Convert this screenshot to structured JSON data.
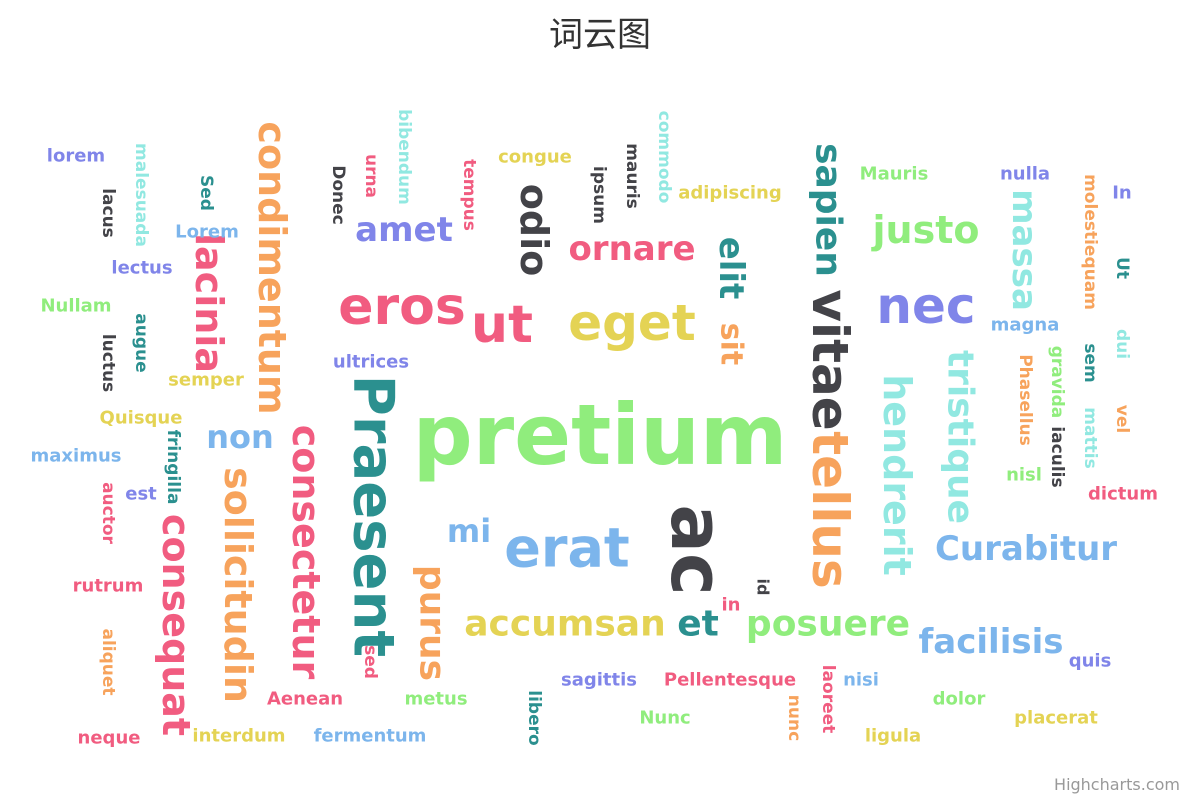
{
  "chart_data": {
    "type": "wordcloud",
    "title": "词云图",
    "credits": "Highcharts.com",
    "words": [
      {
        "text": "pretium",
        "weight": 10,
        "color": "#90ed7d",
        "rotate": 0
      },
      {
        "text": "ac",
        "weight": 7,
        "color": "#434348",
        "rotate": 90
      },
      {
        "text": "Praesent",
        "weight": 6,
        "color": "#2b908f",
        "rotate": 90
      },
      {
        "text": "vitae",
        "weight": 6,
        "color": "#434348",
        "rotate": 90
      },
      {
        "text": "tellus",
        "weight": 6,
        "color": "#f7a35c",
        "rotate": 90
      },
      {
        "text": "erat",
        "weight": 6,
        "color": "#7cb5ec",
        "rotate": 0
      },
      {
        "text": "eros",
        "weight": 6,
        "color": "#f15c80",
        "rotate": 0
      },
      {
        "text": "ut",
        "weight": 6,
        "color": "#f15c80",
        "rotate": 0
      },
      {
        "text": "eget",
        "weight": 6,
        "color": "#e4d354",
        "rotate": 0
      },
      {
        "text": "nec",
        "weight": 6,
        "color": "#8085e9",
        "rotate": 0
      },
      {
        "text": "consequat",
        "weight": 5,
        "color": "#f15c80",
        "rotate": 90
      },
      {
        "text": "condimentum",
        "weight": 5,
        "color": "#f7a35c",
        "rotate": 90
      },
      {
        "text": "consectetur",
        "weight": 5,
        "color": "#f15c80",
        "rotate": 90
      },
      {
        "text": "sollicitudin",
        "weight": 5,
        "color": "#f7a35c",
        "rotate": 90
      },
      {
        "text": "lacinia",
        "weight": 5,
        "color": "#f15c80",
        "rotate": 90
      },
      {
        "text": "hendrerit",
        "weight": 5,
        "color": "#91e8e1",
        "rotate": 90
      },
      {
        "text": "tristique",
        "weight": 5,
        "color": "#91e8e1",
        "rotate": 90
      },
      {
        "text": "massa",
        "weight": 5,
        "color": "#91e8e1",
        "rotate": 90
      },
      {
        "text": "sapien",
        "weight": 5,
        "color": "#2b908f",
        "rotate": 90
      },
      {
        "text": "odio",
        "weight": 5,
        "color": "#434348",
        "rotate": 90
      },
      {
        "text": "purus",
        "weight": 5,
        "color": "#f7a35c",
        "rotate": 90
      },
      {
        "text": "elit",
        "weight": 5,
        "color": "#2b908f",
        "rotate": 90
      },
      {
        "text": "sit",
        "weight": 5,
        "color": "#f7a35c",
        "rotate": 90
      },
      {
        "text": "accumsan",
        "weight": 5,
        "color": "#e4d354",
        "rotate": 0
      },
      {
        "text": "posuere",
        "weight": 5,
        "color": "#90ed7d",
        "rotate": 0
      },
      {
        "text": "et",
        "weight": 5,
        "color": "#2b908f",
        "rotate": 0
      },
      {
        "text": "facilisis",
        "weight": 5,
        "color": "#7cb5ec",
        "rotate": 0
      },
      {
        "text": "Curabitur",
        "weight": 4,
        "color": "#7cb5ec",
        "rotate": 0
      },
      {
        "text": "justo",
        "weight": 5,
        "color": "#90ed7d",
        "rotate": 0
      },
      {
        "text": "ornare",
        "weight": 4,
        "color": "#f15c80",
        "rotate": 0
      },
      {
        "text": "amet",
        "weight": 4,
        "color": "#8085e9",
        "rotate": 0
      },
      {
        "text": "non",
        "weight": 4,
        "color": "#7cb5ec",
        "rotate": 0
      },
      {
        "text": "mi",
        "weight": 4,
        "color": "#7cb5ec",
        "rotate": 0
      },
      {
        "text": "lorem",
        "weight": 2,
        "color": "#8085e9",
        "rotate": 0
      },
      {
        "text": "lacus",
        "weight": 2,
        "color": "#434348",
        "rotate": 90
      },
      {
        "text": "malesuada",
        "weight": 2,
        "color": "#91e8e1",
        "rotate": 90
      },
      {
        "text": "Sed",
        "weight": 2,
        "color": "#2b908f",
        "rotate": 90
      },
      {
        "text": "Lorem",
        "weight": 2,
        "color": "#7cb5ec",
        "rotate": 0
      },
      {
        "text": "lectus",
        "weight": 2,
        "color": "#8085e9",
        "rotate": 0
      },
      {
        "text": "Nullam",
        "weight": 2,
        "color": "#90ed7d",
        "rotate": 0
      },
      {
        "text": "luctus",
        "weight": 2,
        "color": "#434348",
        "rotate": 90
      },
      {
        "text": "augue",
        "weight": 2,
        "color": "#2b908f",
        "rotate": 90
      },
      {
        "text": "semper",
        "weight": 2,
        "color": "#e4d354",
        "rotate": 0
      },
      {
        "text": "Quisque",
        "weight": 2,
        "color": "#e4d354",
        "rotate": 0
      },
      {
        "text": "maximus",
        "weight": 2,
        "color": "#7cb5ec",
        "rotate": 0
      },
      {
        "text": "fringilla",
        "weight": 2,
        "color": "#2b908f",
        "rotate": 90
      },
      {
        "text": "est",
        "weight": 2,
        "color": "#8085e9",
        "rotate": 0
      },
      {
        "text": "auctor",
        "weight": 2,
        "color": "#f15c80",
        "rotate": 90
      },
      {
        "text": "rutrum",
        "weight": 2,
        "color": "#f15c80",
        "rotate": 0
      },
      {
        "text": "aliquet",
        "weight": 2,
        "color": "#f7a35c",
        "rotate": 90
      },
      {
        "text": "neque",
        "weight": 2,
        "color": "#f15c80",
        "rotate": 0
      },
      {
        "text": "interdum",
        "weight": 2,
        "color": "#e4d354",
        "rotate": 0
      },
      {
        "text": "fermentum",
        "weight": 2,
        "color": "#7cb5ec",
        "rotate": 0
      },
      {
        "text": "Aenean",
        "weight": 2,
        "color": "#f15c80",
        "rotate": 0
      },
      {
        "text": "metus",
        "weight": 2,
        "color": "#90ed7d",
        "rotate": 0
      },
      {
        "text": "sed",
        "weight": 2,
        "color": "#f15c80",
        "rotate": 90
      },
      {
        "text": "libero",
        "weight": 2,
        "color": "#2b908f",
        "rotate": 90
      },
      {
        "text": "sagittis",
        "weight": 2,
        "color": "#8085e9",
        "rotate": 0
      },
      {
        "text": "Nunc",
        "weight": 2,
        "color": "#90ed7d",
        "rotate": 0
      },
      {
        "text": "Pellentesque",
        "weight": 2,
        "color": "#f15c80",
        "rotate": 0
      },
      {
        "text": "nunc",
        "weight": 2,
        "color": "#f7a35c",
        "rotate": 90
      },
      {
        "text": "laoreet",
        "weight": 2,
        "color": "#f15c80",
        "rotate": 90
      },
      {
        "text": "nisi",
        "weight": 2,
        "color": "#7cb5ec",
        "rotate": 0
      },
      {
        "text": "ligula",
        "weight": 2,
        "color": "#e4d354",
        "rotate": 0
      },
      {
        "text": "dolor",
        "weight": 2,
        "color": "#90ed7d",
        "rotate": 0
      },
      {
        "text": "placerat",
        "weight": 2,
        "color": "#e4d354",
        "rotate": 0
      },
      {
        "text": "quis",
        "weight": 2,
        "color": "#8085e9",
        "rotate": 0
      },
      {
        "text": "in",
        "weight": 2,
        "color": "#f15c80",
        "rotate": 0
      },
      {
        "text": "id",
        "weight": 2,
        "color": "#434348",
        "rotate": 90
      },
      {
        "text": "ultrices",
        "weight": 2,
        "color": "#8085e9",
        "rotate": 0
      },
      {
        "text": "Donec",
        "weight": 2,
        "color": "#434348",
        "rotate": 90
      },
      {
        "text": "urna",
        "weight": 2,
        "color": "#f15c80",
        "rotate": 90
      },
      {
        "text": "bibendum",
        "weight": 2,
        "color": "#91e8e1",
        "rotate": 90
      },
      {
        "text": "tempus",
        "weight": 2,
        "color": "#f15c80",
        "rotate": 90
      },
      {
        "text": "congue",
        "weight": 2,
        "color": "#e4d354",
        "rotate": 0
      },
      {
        "text": "ipsum",
        "weight": 2,
        "color": "#434348",
        "rotate": 90
      },
      {
        "text": "mauris",
        "weight": 2,
        "color": "#434348",
        "rotate": 90
      },
      {
        "text": "commodo",
        "weight": 2,
        "color": "#91e8e1",
        "rotate": 90
      },
      {
        "text": "adipiscing",
        "weight": 2,
        "color": "#e4d354",
        "rotate": 0
      },
      {
        "text": "Mauris",
        "weight": 2,
        "color": "#90ed7d",
        "rotate": 0
      },
      {
        "text": "nulla",
        "weight": 2,
        "color": "#8085e9",
        "rotate": 0
      },
      {
        "text": "molestiequam",
        "weight": 2,
        "color": "#f7a35c",
        "rotate": 90
      },
      {
        "text": "In",
        "weight": 2,
        "color": "#8085e9",
        "rotate": 0
      },
      {
        "text": "Ut",
        "weight": 2,
        "color": "#2b908f",
        "rotate": 90
      },
      {
        "text": "magna",
        "weight": 2,
        "color": "#7cb5ec",
        "rotate": 0
      },
      {
        "text": "Phasellus",
        "weight": 2,
        "color": "#f7a35c",
        "rotate": 90
      },
      {
        "text": "gravida",
        "weight": 2,
        "color": "#90ed7d",
        "rotate": 90
      },
      {
        "text": "iaculis",
        "weight": 2,
        "color": "#434348",
        "rotate": 90
      },
      {
        "text": "sem",
        "weight": 2,
        "color": "#2b908f",
        "rotate": 90
      },
      {
        "text": "dui",
        "weight": 2,
        "color": "#91e8e1",
        "rotate": 90
      },
      {
        "text": "mattis",
        "weight": 2,
        "color": "#91e8e1",
        "rotate": 90
      },
      {
        "text": "vel",
        "weight": 2,
        "color": "#f7a35c",
        "rotate": 90
      },
      {
        "text": "nisl",
        "weight": 2,
        "color": "#90ed7d",
        "rotate": 0
      },
      {
        "text": "dictum",
        "weight": 2,
        "color": "#f15c80",
        "rotate": 0
      }
    ]
  }
}
